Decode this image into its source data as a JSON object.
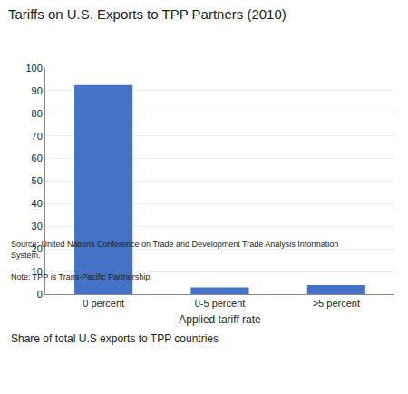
{
  "chart_data": {
    "type": "bar",
    "title": "Tariffs on U.S. Exports to TPP Partners (2010)",
    "subtitle": "Share of total U.S exports to TPP countries",
    "categories": [
      "0 percent",
      "0-5 percent",
      ">5 percent"
    ],
    "values": [
      92.5,
      3.0,
      4.0
    ],
    "color": "#4472C4",
    "xlabel": "Applied tariff rate",
    "ylim": [
      0,
      100
    ],
    "yticks": [
      0,
      10,
      20,
      30,
      40,
      50,
      60,
      70,
      80,
      90,
      100
    ],
    "grid": true,
    "source": "Source: United Nations Conference on Trade and Development Trade Analysis Information\nSystem.",
    "note": "Note: TPP is Trans-Pacific Partnership."
  }
}
